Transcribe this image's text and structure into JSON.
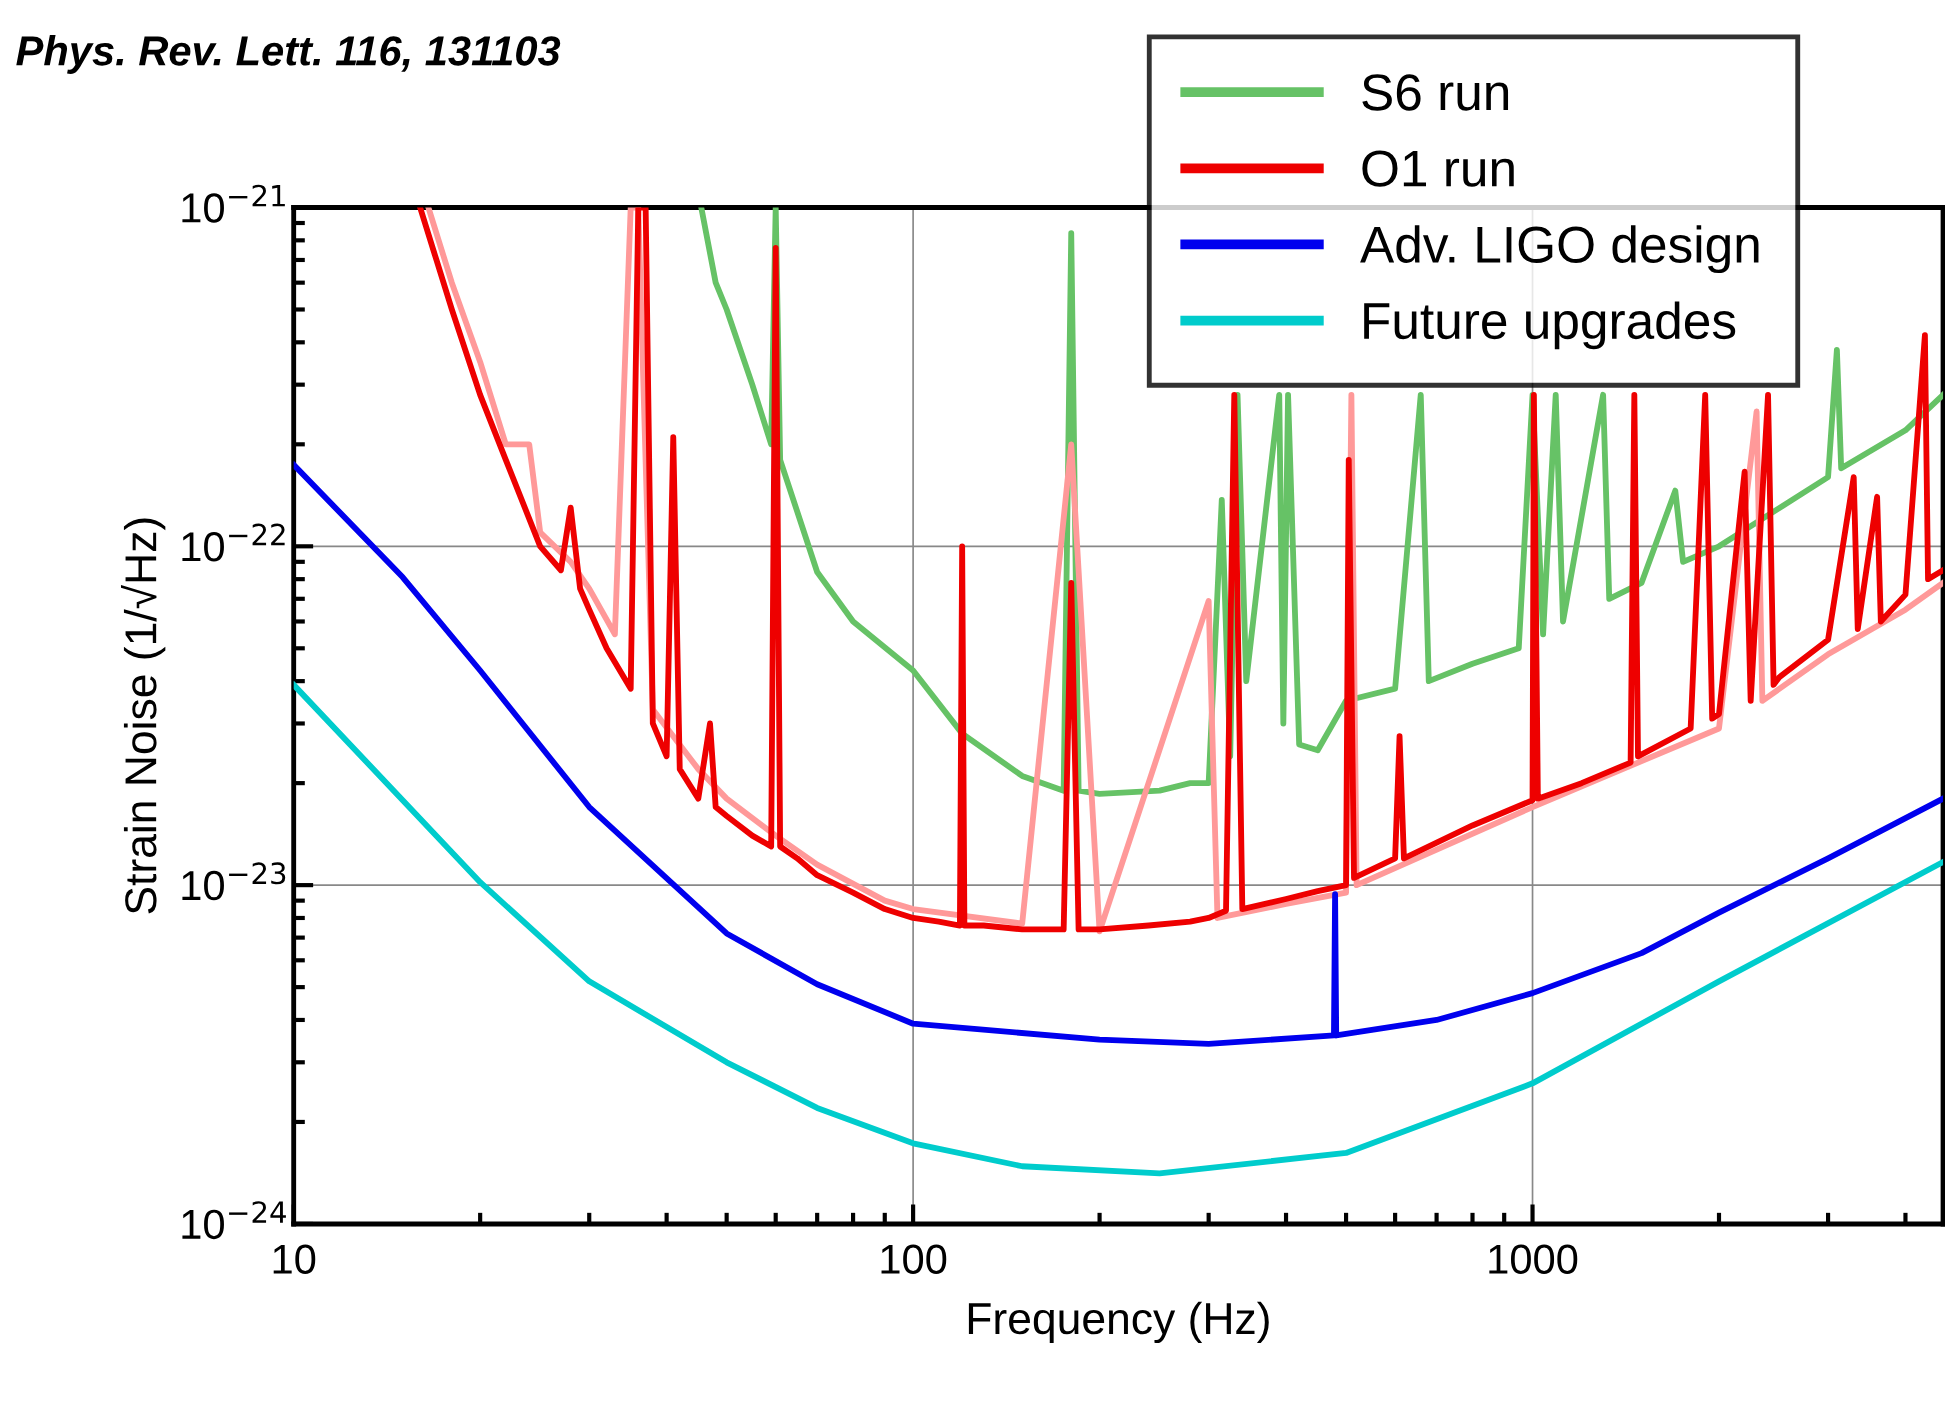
{
  "chart_data": {
    "type": "line",
    "xlabel": "Frequency (Hz)",
    "ylabel": "Strain Noise (1/√Hz)",
    "annotations": [
      "Phys. Rev. Lett. 116, 131103"
    ],
    "log": "xy",
    "grid": true,
    "legend": "top right",
    "marker": "none",
    "line_style": "solid",
    "xlim": [
      10,
      4600
    ],
    "xticks": [
      10,
      100,
      1000
    ],
    "ylim": [
      1e-24,
      1e-21
    ],
    "yticks": [
      {
        "value": 1e-24,
        "label": "10$^{−24}$"
      },
      {
        "value": 1e-23,
        "label": "10$^{−23}$"
      },
      {
        "value": 1e-22,
        "label": "10$^{−22}$"
      },
      {
        "value": 1e-21,
        "label": "10$^{−21}$"
      }
    ],
    "series": [
      {
        "name": "S6 run",
        "color": "#66c266",
        "x": [
          45.5,
          48,
          50,
          55,
          59,
          60,
          61,
          70,
          80,
          100,
          120,
          150,
          175,
          180,
          185,
          200,
          250,
          280,
          300,
          315,
          325,
          334,
          345,
          390,
          396,
          403,
          420,
          450,
          500,
          600,
          660,
          680,
          800,
          950,
          1000,
          1040,
          1090,
          1120,
          1300,
          1330,
          1500,
          1700,
          1750,
          2000,
          3000,
          3100,
          3150,
          4000,
          4600
        ],
        "values": [
          1e-21,
          6e-22,
          5e-22,
          3e-22,
          2e-22,
          1e-21,
          1.8e-22,
          8.4e-23,
          6e-23,
          4.3e-23,
          2.8e-23,
          2.1e-23,
          1.9e-23,
          8.4e-22,
          1.9e-23,
          1.86e-23,
          1.9e-23,
          2e-23,
          2e-23,
          1.37e-22,
          2.4e-23,
          2.8e-22,
          4e-23,
          2.8e-22,
          3e-23,
          2.8e-22,
          2.6e-23,
          2.5e-23,
          3.5e-23,
          3.8e-23,
          2.8e-22,
          4e-23,
          4.5e-23,
          5e-23,
          2.8e-22,
          5.5e-23,
          2.8e-22,
          6e-23,
          2.8e-22,
          7e-23,
          7.8e-23,
          1.46e-22,
          9e-23,
          1e-22,
          1.6e-22,
          3.8e-22,
          1.7e-22,
          2.2e-22,
          2.8e-22
        ]
      },
      {
        "color": "#ff9999",
        "x": [
          16.5,
          18,
          20,
          22,
          24,
          25,
          28,
          30,
          33,
          35,
          36,
          38,
          45,
          50,
          60,
          70,
          90,
          100,
          150,
          180,
          200,
          300,
          310,
          400,
          500,
          510,
          520,
          1000,
          2000,
          2300,
          2350,
          3000,
          4000,
          4600
        ],
        "values": [
          1e-21,
          6e-22,
          3.5e-22,
          2e-22,
          2e-22,
          1.1e-22,
          9e-23,
          7.5e-23,
          5.5e-23,
          1e-21,
          1e-21,
          3.3e-23,
          2.2e-23,
          1.8e-23,
          1.4e-23,
          1.15e-23,
          9e-24,
          8.5e-24,
          7.7e-24,
          2e-22,
          7.3e-24,
          6.9e-23,
          8e-24,
          8.8e-24,
          9.5e-24,
          2.8e-22,
          1e-23,
          1.7e-23,
          2.9e-23,
          2.5e-22,
          3.5e-23,
          4.8e-23,
          6.5e-23,
          7.8e-23
        ]
      },
      {
        "name": "O1 run",
        "color": "#ee0000",
        "x": [
          16,
          17,
          18,
          20,
          22,
          25,
          27,
          28,
          29,
          30,
          32,
          35,
          36,
          37,
          38,
          40,
          41,
          42,
          45,
          47,
          48,
          50,
          55,
          59,
          60,
          61,
          65,
          70,
          80,
          90,
          100,
          110,
          119,
          120,
          121,
          130,
          150,
          175,
          180,
          185,
          200,
          240,
          280,
          300,
          320,
          330,
          340,
          400,
          450,
          500,
          505,
          515,
          600,
          610,
          620,
          800,
          1000,
          1005,
          1020,
          1200,
          1440,
          1460,
          1480,
          1800,
          1900,
          1950,
          2000,
          2200,
          2250,
          2400,
          2450,
          2500,
          3000,
          3300,
          3350,
          3600,
          3650,
          4000,
          4300,
          4350,
          4600
        ],
        "values": [
          1e-21,
          7e-22,
          5e-22,
          2.8e-22,
          1.8e-22,
          1e-22,
          8.5e-23,
          1.3e-22,
          7.5e-23,
          6.5e-23,
          5e-23,
          3.8e-23,
          1e-21,
          1e-21,
          3e-23,
          2.4e-23,
          2.1e-22,
          2.2e-23,
          1.8e-23,
          3e-23,
          1.7e-23,
          1.6e-23,
          1.4e-23,
          1.3e-23,
          7.6e-22,
          1.3e-23,
          1.2e-23,
          1.07e-23,
          9.5e-24,
          8.5e-24,
          8e-24,
          7.8e-24,
          7.6e-24,
          1e-22,
          7.6e-24,
          7.6e-24,
          7.4e-24,
          7.4e-24,
          7.8e-23,
          7.4e-24,
          7.4e-24,
          7.6e-24,
          7.8e-24,
          8e-24,
          8.4e-24,
          2.8e-22,
          8.5e-24,
          9.1e-24,
          9.6e-24,
          1e-23,
          1.8e-22,
          1.05e-23,
          1.2e-23,
          2.75e-23,
          1.2e-23,
          1.5e-23,
          1.78e-23,
          2.8e-22,
          1.8e-23,
          2e-23,
          2.3e-23,
          2.8e-22,
          2.4e-23,
          2.9e-23,
          2.8e-22,
          3.1e-23,
          3.2e-23,
          1.66e-22,
          3.5e-23,
          2.8e-22,
          3.9e-23,
          4.1e-23,
          5.3e-23,
          1.6e-22,
          5.7e-23,
          1.4e-22,
          6e-23,
          7.2e-23,
          4.2e-22,
          8e-23,
          8.5e-23
        ]
      },
      {
        "name": "Adv. LIGO design",
        "color": "#0000ee",
        "x": [
          10,
          15,
          20,
          30,
          50,
          70,
          100,
          200,
          300,
          478,
          480,
          482,
          700,
          1000,
          1500,
          2000,
          3000,
          4600
        ],
        "values": [
          1.74e-22,
          8.1e-23,
          4.3e-23,
          1.7e-23,
          7.2e-24,
          5.1e-24,
          3.9e-24,
          3.5e-24,
          3.4e-24,
          3.6e-24,
          9.4e-24,
          3.6e-24,
          4e-24,
          4.8e-24,
          6.3e-24,
          8.3e-24,
          1.2e-23,
          1.8e-23
        ]
      },
      {
        "name": "Future upgrades",
        "color": "#00cccc",
        "x": [
          10,
          20,
          30,
          50,
          70,
          100,
          150,
          250,
          500,
          1000,
          2000,
          4600
        ],
        "values": [
          3.9e-23,
          1.02e-23,
          5.2e-24,
          3e-24,
          2.2e-24,
          1.73e-24,
          1.48e-24,
          1.41e-24,
          1.62e-24,
          2.6e-24,
          5.2e-24,
          1.17e-23
        ]
      }
    ]
  }
}
